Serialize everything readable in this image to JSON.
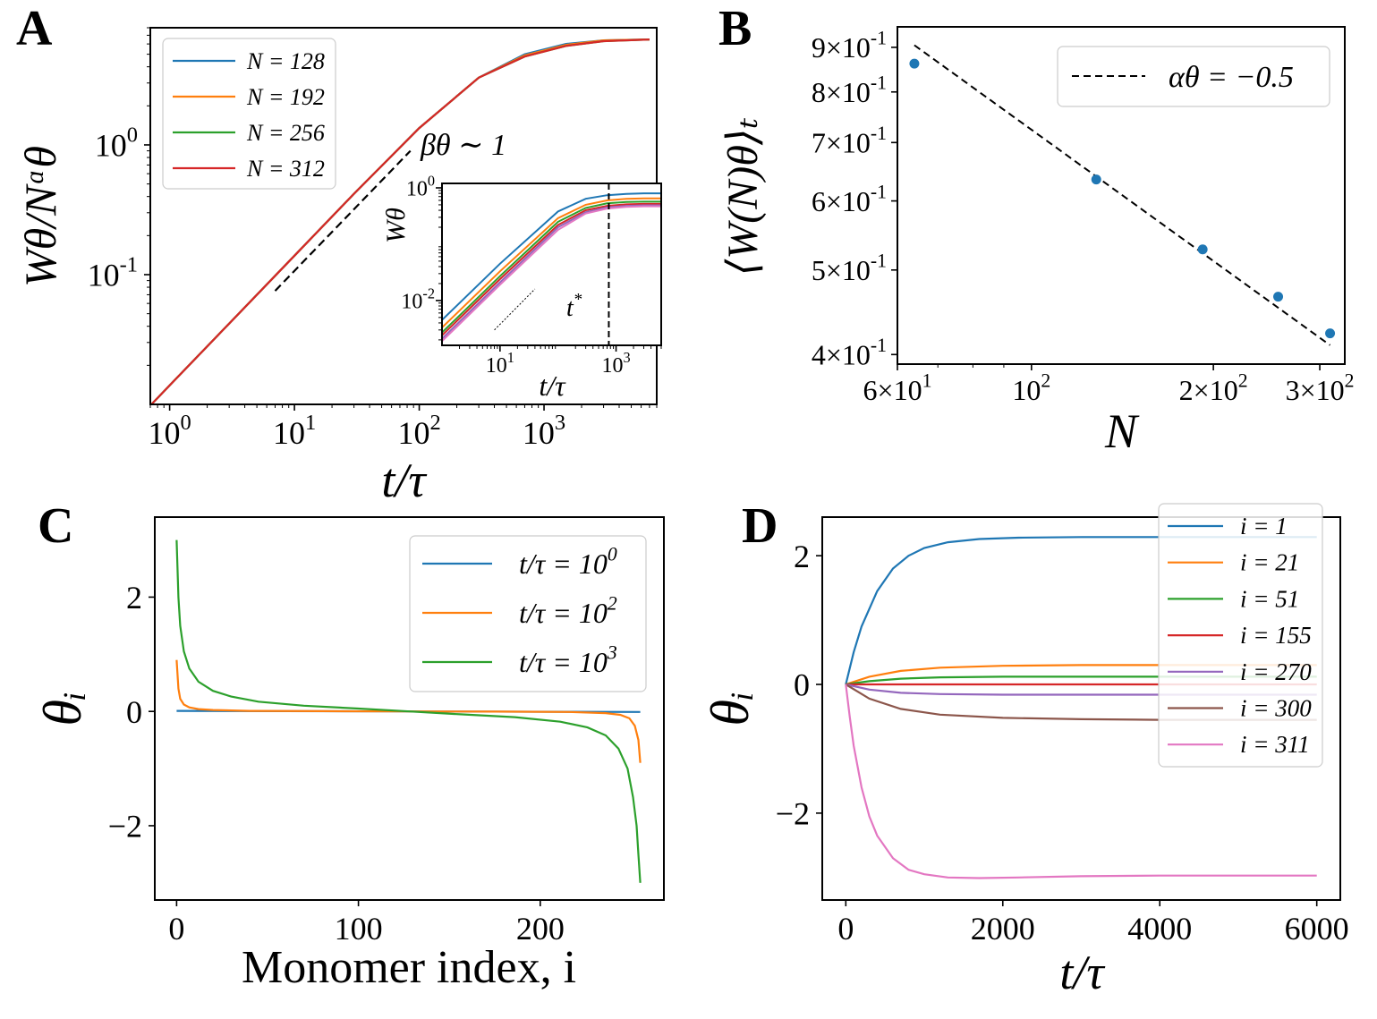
{
  "colors": {
    "blue": "#1f77b4",
    "orange": "#ff7f0e",
    "green": "#2ca02c",
    "red": "#d62728",
    "purple": "#9467bd",
    "brown": "#8c564b",
    "pink": "#e377c2",
    "black": "#000000"
  },
  "chart_data": [
    {
      "panel": "A",
      "type": "line",
      "scale": "loglog",
      "panel_label": "A",
      "xlabel": "t/τ",
      "ylabel": "W_θ/N^α_θ",
      "xlim": [
        0.7,
        8000
      ],
      "ylim": [
        0.01,
        8
      ],
      "x_ticks": [
        "10^0",
        "10^1",
        "10^2",
        "10^3"
      ],
      "x_tick_values": [
        1,
        10,
        100,
        1000
      ],
      "y_ticks": [
        "10^0",
        "10^-1"
      ],
      "y_tick_values": [
        1,
        0.1
      ],
      "annotation": "β_θ ∼ 1",
      "legend_position": "top-left",
      "series": [
        {
          "name": "N = 128",
          "color": "blue",
          "x": [
            0.7,
            1,
            3,
            10,
            30,
            100,
            300,
            700,
            1500,
            3000,
            7000
          ],
          "y": [
            0.0098,
            0.014,
            0.042,
            0.14,
            0.42,
            1.35,
            3.3,
            5.0,
            6.0,
            6.4,
            6.5
          ]
        },
        {
          "name": "N = 192",
          "color": "orange",
          "x": [
            0.7,
            1,
            3,
            10,
            30,
            100,
            300,
            700,
            1500,
            3000,
            7000
          ],
          "y": [
            0.0098,
            0.014,
            0.042,
            0.14,
            0.42,
            1.35,
            3.3,
            4.9,
            5.9,
            6.4,
            6.5
          ]
        },
        {
          "name": "N = 256",
          "color": "green",
          "x": [
            0.7,
            1,
            3,
            10,
            30,
            100,
            300,
            700,
            1500,
            3000,
            7000
          ],
          "y": [
            0.0098,
            0.014,
            0.042,
            0.14,
            0.42,
            1.35,
            3.3,
            4.8,
            5.8,
            6.3,
            6.5
          ]
        },
        {
          "name": "N = 312",
          "color": "red",
          "x": [
            0.7,
            1,
            3,
            10,
            30,
            100,
            300,
            700,
            1500,
            3000,
            7000
          ],
          "y": [
            0.0098,
            0.014,
            0.042,
            0.14,
            0.42,
            1.35,
            3.3,
            4.8,
            5.8,
            6.3,
            6.5
          ]
        }
      ],
      "guide_line": {
        "style": "dashed",
        "x": [
          7,
          85
        ],
        "y": [
          0.075,
          0.9
        ]
      }
    },
    {
      "panel": "A-inset",
      "type": "line",
      "scale": "loglog",
      "xlabel": "t/τ",
      "ylabel": "W_θ",
      "xlim": [
        1,
        6000
      ],
      "ylim": [
        0.0016,
        1.2
      ],
      "x_ticks": [
        "10^1",
        "10^3"
      ],
      "x_tick_values": [
        10,
        1000
      ],
      "y_ticks": [
        "10^0",
        "10^-2"
      ],
      "y_tick_values": [
        1,
        0.01
      ],
      "vline_label": "t*",
      "vline_x": 750,
      "series": [
        {
          "color": "blue",
          "x": [
            1,
            10,
            100,
            300,
            700,
            1500,
            3000,
            6000
          ],
          "y": [
            0.0045,
            0.045,
            0.38,
            0.64,
            0.74,
            0.78,
            0.8,
            0.8
          ]
        },
        {
          "color": "orange",
          "x": [
            1,
            10,
            100,
            300,
            700,
            1500,
            3000,
            6000
          ],
          "y": [
            0.0033,
            0.033,
            0.29,
            0.5,
            0.6,
            0.64,
            0.65,
            0.65
          ]
        },
        {
          "color": "green",
          "x": [
            1,
            10,
            100,
            300,
            700,
            1500,
            3000,
            6000
          ],
          "y": [
            0.0027,
            0.027,
            0.25,
            0.44,
            0.53,
            0.56,
            0.57,
            0.57
          ]
        },
        {
          "color": "red",
          "x": [
            1,
            10,
            100,
            300,
            700,
            1500,
            3000,
            6000
          ],
          "y": [
            0.0024,
            0.024,
            0.22,
            0.4,
            0.48,
            0.51,
            0.52,
            0.52
          ]
        },
        {
          "color": "purple",
          "x": [
            1,
            10,
            100,
            300,
            700,
            1500,
            3000,
            6000
          ],
          "y": [
            0.0021,
            0.021,
            0.2,
            0.37,
            0.45,
            0.48,
            0.49,
            0.49
          ]
        },
        {
          "color": "pink",
          "x": [
            1,
            10,
            100,
            300,
            700,
            1500,
            3000,
            6000
          ],
          "y": [
            0.0019,
            0.019,
            0.18,
            0.35,
            0.43,
            0.46,
            0.47,
            0.47
          ]
        }
      ],
      "guide_line": {
        "style": "dotted",
        "x": [
          8,
          40
        ],
        "y": [
          0.003,
          0.016
        ]
      }
    },
    {
      "panel": "B",
      "type": "scatter",
      "scale": "loglog",
      "panel_label": "B",
      "xlabel": "N",
      "ylabel": "⟨W(N)_θ⟩_t",
      "xlim": [
        60,
        330
      ],
      "ylim": [
        0.39,
        0.95
      ],
      "x_ticks": [
        "6×10^1",
        "10^2",
        "2×10^2",
        "3×10^2"
      ],
      "x_tick_values": [
        60,
        100,
        200,
        300
      ],
      "y_ticks": [
        "9×10^-1",
        "8×10^-1",
        "7×10^-1",
        "6×10^-1",
        "5×10^-1",
        "4×10^-1"
      ],
      "y_tick_values": [
        0.9,
        0.8,
        0.7,
        0.6,
        0.5,
        0.4
      ],
      "points": {
        "x": [
          64,
          128,
          192,
          256,
          312
        ],
        "y": [
          0.862,
          0.635,
          0.528,
          0.466,
          0.423
        ]
      },
      "fit": {
        "name": "α_θ = −0.5",
        "style": "dashed",
        "x": [
          64,
          312
        ],
        "y": [
          0.905,
          0.41
        ]
      },
      "legend_position": "top-right"
    },
    {
      "panel": "C",
      "type": "line",
      "panel_label": "C",
      "xlabel": "Monomer index, i",
      "ylabel": "θ_i",
      "xlim": [
        -12,
        268
      ],
      "ylim": [
        -3.3,
        3.4
      ],
      "x_ticks": [
        "0",
        "100",
        "200"
      ],
      "x_tick_values": [
        0,
        100,
        200
      ],
      "y_ticks": [
        "2",
        "0",
        "−2"
      ],
      "y_tick_values": [
        2,
        0,
        -2
      ],
      "legend_position": "top-right",
      "series": [
        {
          "name": "t/τ = 10^0",
          "color": "blue",
          "x": [
            0,
            128,
            255
          ],
          "y": [
            0.01,
            0,
            -0.01
          ]
        },
        {
          "name": "t/τ = 10^2",
          "color": "orange",
          "x": [
            0,
            1,
            2,
            4,
            7,
            12,
            20,
            40,
            80,
            128,
            176,
            216,
            236,
            244,
            249,
            252,
            254,
            255
          ],
          "y": [
            0.9,
            0.4,
            0.22,
            0.12,
            0.07,
            0.04,
            0.025,
            0.01,
            0.004,
            0,
            -0.004,
            -0.01,
            -0.03,
            -0.06,
            -0.12,
            -0.25,
            -0.5,
            -0.9
          ]
        },
        {
          "name": "t/τ = 10^3",
          "color": "green",
          "x": [
            0,
            1,
            2,
            4,
            7,
            12,
            20,
            30,
            45,
            70,
            100,
            128,
            156,
            186,
            211,
            226,
            236,
            243,
            248,
            251,
            253,
            254,
            255
          ],
          "y": [
            3.0,
            2.0,
            1.5,
            1.05,
            0.75,
            0.52,
            0.36,
            0.26,
            0.17,
            0.1,
            0.05,
            0,
            -0.05,
            -0.1,
            -0.18,
            -0.28,
            -0.42,
            -0.65,
            -1.0,
            -1.5,
            -2.0,
            -2.5,
            -3.0
          ]
        }
      ]
    },
    {
      "panel": "D",
      "type": "line",
      "panel_label": "D",
      "xlabel": "t/τ",
      "ylabel": "θ_i",
      "xlim": [
        -300,
        6300
      ],
      "ylim": [
        -3.35,
        2.6
      ],
      "x_ticks": [
        "0",
        "2000",
        "4000",
        "6000"
      ],
      "x_tick_values": [
        0,
        2000,
        4000,
        6000
      ],
      "y_ticks": [
        "2",
        "0",
        "−2"
      ],
      "y_tick_values": [
        2,
        0,
        -2
      ],
      "legend_position": "top-right",
      "series": [
        {
          "name": "i = 1",
          "color": "blue",
          "x": [
            0,
            100,
            200,
            400,
            600,
            800,
            1000,
            1300,
            1700,
            2200,
            3000,
            4000,
            5000,
            6000
          ],
          "y": [
            0,
            0.5,
            0.9,
            1.45,
            1.8,
            2.0,
            2.12,
            2.21,
            2.26,
            2.28,
            2.29,
            2.29,
            2.29,
            2.29
          ]
        },
        {
          "name": "i = 21",
          "color": "orange",
          "x": [
            0,
            300,
            700,
            1200,
            2000,
            3000,
            4000,
            5000,
            6000
          ],
          "y": [
            0,
            0.12,
            0.21,
            0.26,
            0.29,
            0.3,
            0.3,
            0.3,
            0.3
          ]
        },
        {
          "name": "i = 51",
          "color": "green",
          "x": [
            0,
            300,
            700,
            1200,
            2000,
            3000,
            4000,
            5000,
            6000
          ],
          "y": [
            0,
            0.05,
            0.09,
            0.11,
            0.12,
            0.12,
            0.12,
            0.12,
            0.12
          ]
        },
        {
          "name": "i = 155",
          "color": "red",
          "x": [
            0,
            6000
          ],
          "y": [
            0,
            0
          ]
        },
        {
          "name": "i = 270",
          "color": "purple",
          "x": [
            0,
            300,
            700,
            1200,
            2000,
            3000,
            4000,
            5000,
            6000
          ],
          "y": [
            0,
            -0.08,
            -0.13,
            -0.15,
            -0.16,
            -0.16,
            -0.16,
            -0.16,
            -0.16
          ]
        },
        {
          "name": "i = 300",
          "color": "brown",
          "x": [
            0,
            300,
            700,
            1200,
            2000,
            3000,
            4000,
            5000,
            6000
          ],
          "y": [
            0,
            -0.22,
            -0.38,
            -0.47,
            -0.52,
            -0.54,
            -0.55,
            -0.55,
            -0.55
          ]
        },
        {
          "name": "i = 311",
          "color": "pink",
          "x": [
            0,
            50,
            100,
            200,
            300,
            400,
            600,
            800,
            1000,
            1300,
            1700,
            2200,
            3000,
            4000,
            5000,
            6000
          ],
          "y": [
            0,
            -0.5,
            -0.95,
            -1.6,
            -2.05,
            -2.35,
            -2.7,
            -2.88,
            -2.95,
            -3.0,
            -3.01,
            -3.0,
            -2.98,
            -2.97,
            -2.97,
            -2.97
          ]
        }
      ]
    }
  ]
}
